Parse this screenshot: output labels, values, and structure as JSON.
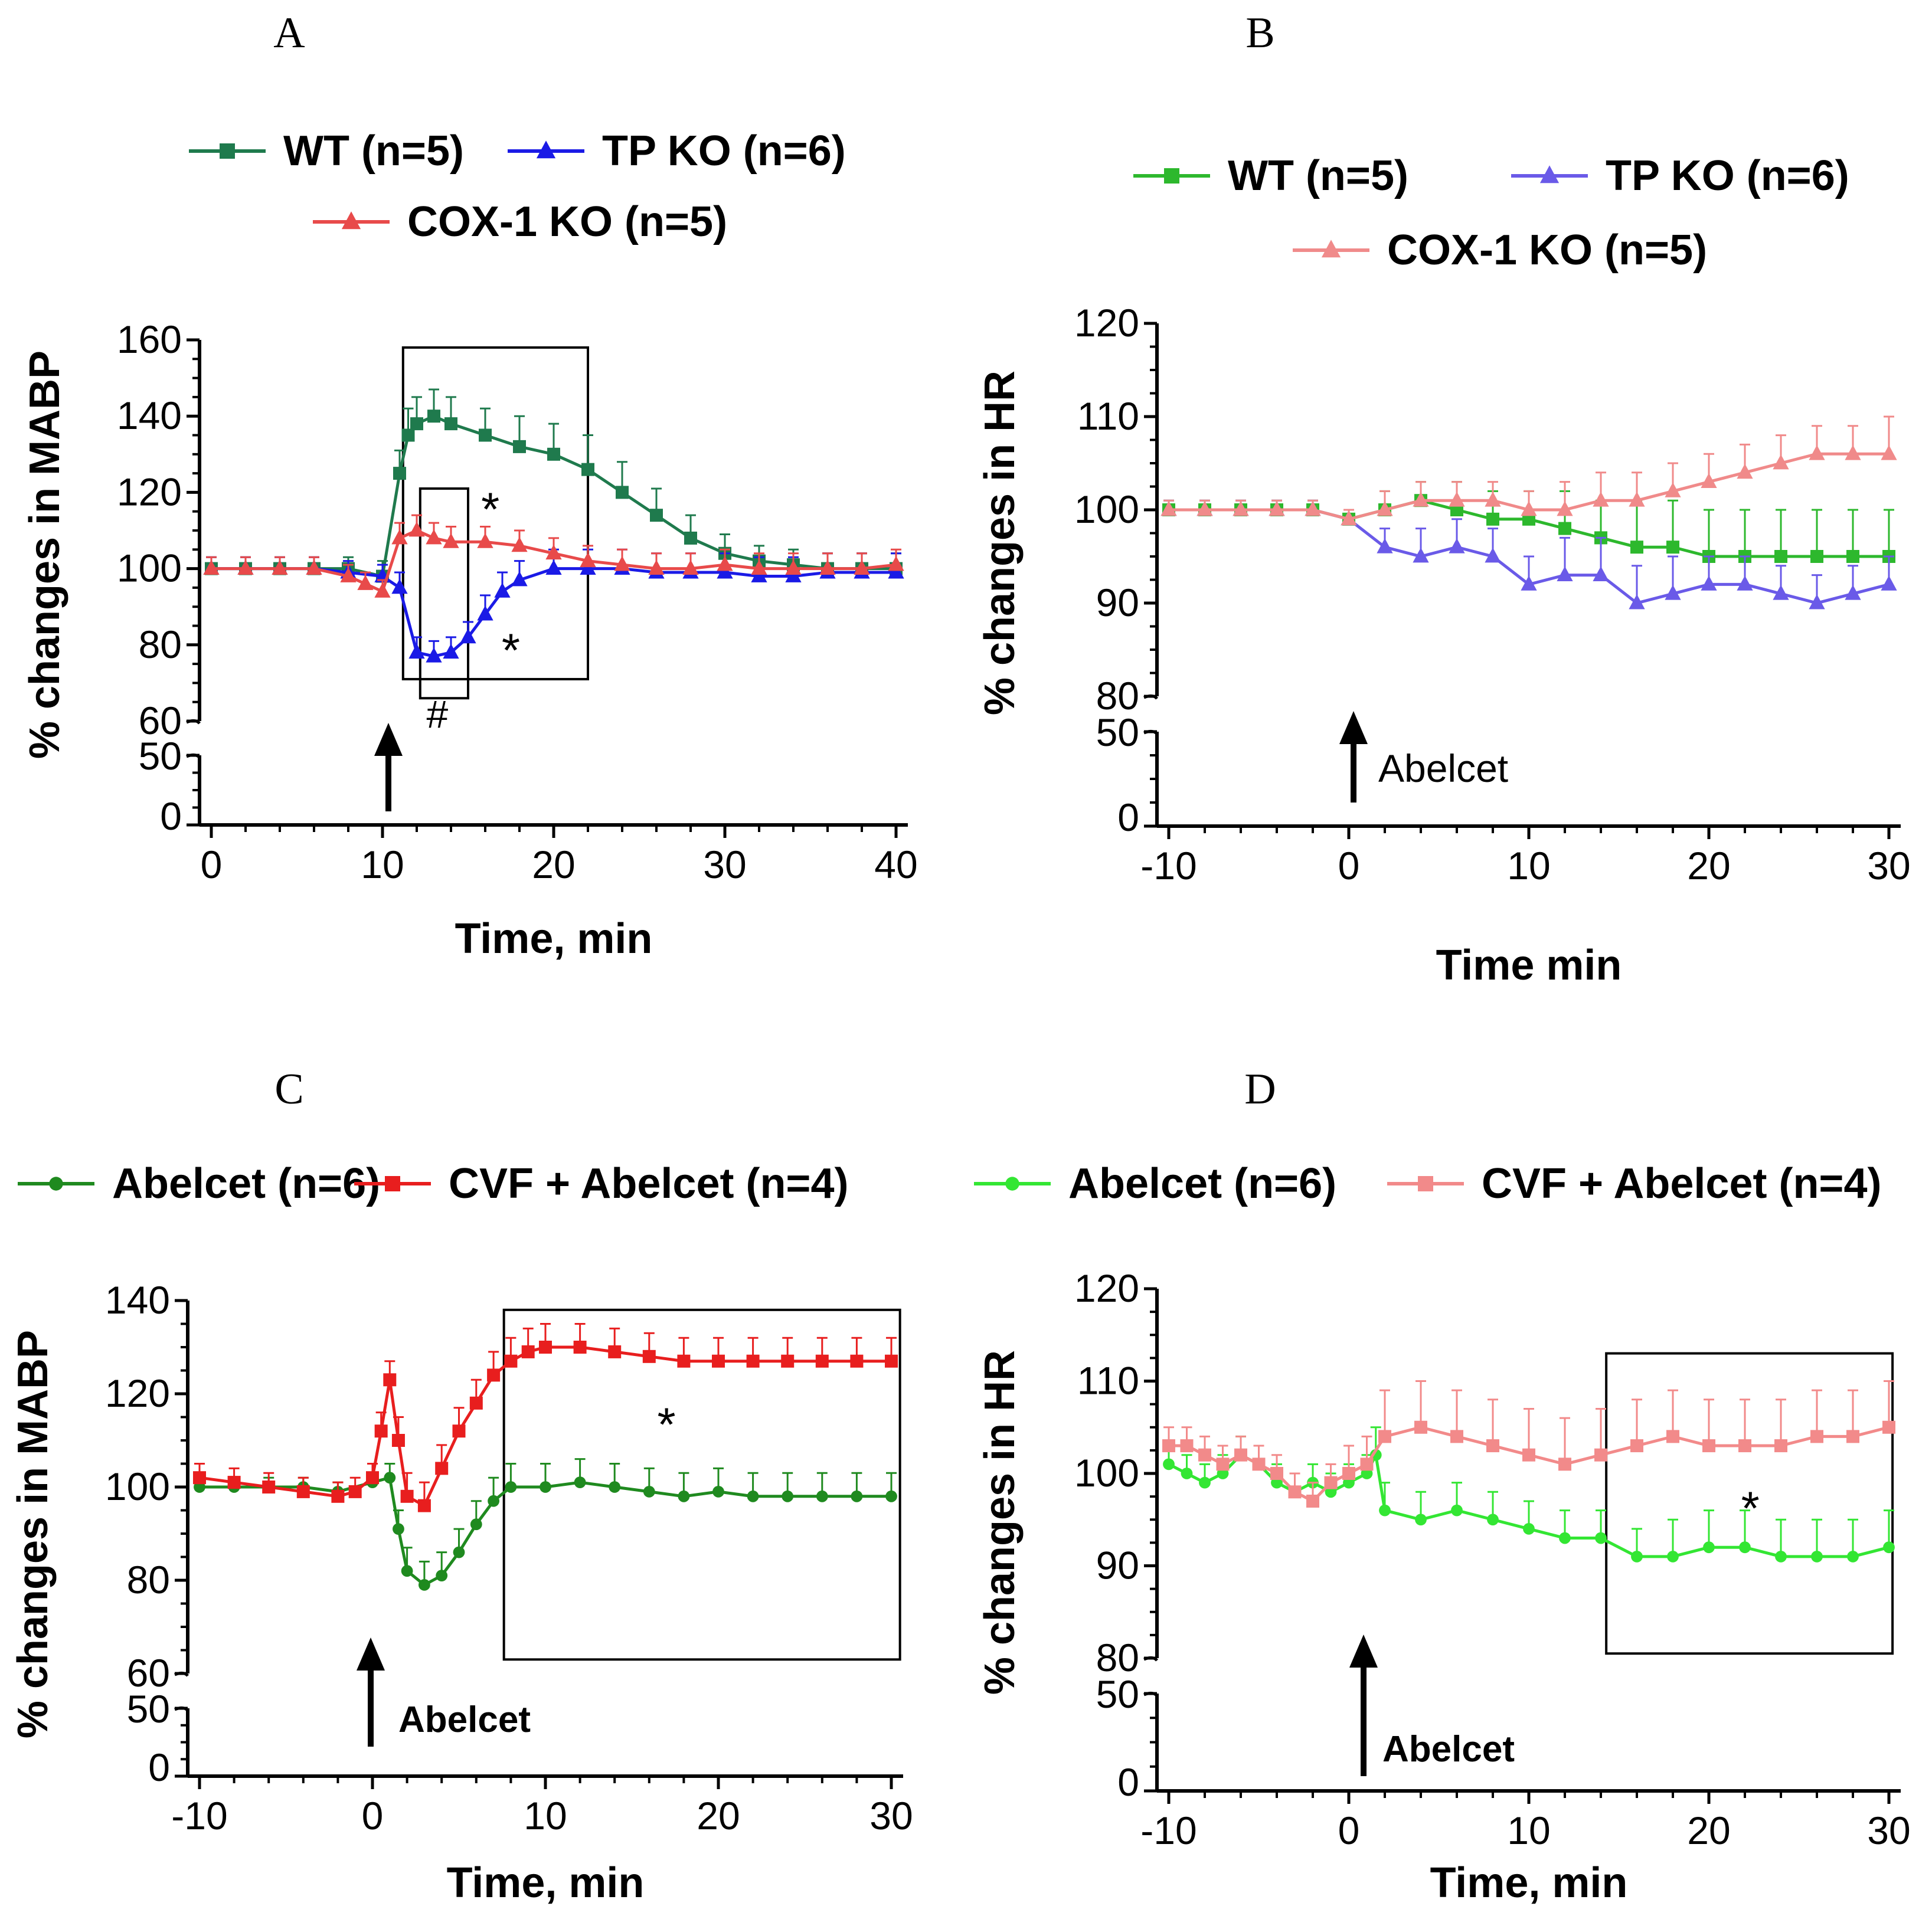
{
  "figure": {
    "panel_letters": [
      "A",
      "B",
      "C",
      "D"
    ]
  },
  "chart_data": [
    {
      "panel": "A",
      "type": "line",
      "xlabel": "Time, min",
      "ylabel": "% changes in MABP",
      "xlim": [
        0,
        40
      ],
      "ylim": [
        60,
        160
      ],
      "ylim_lower": [
        0,
        50
      ],
      "xticks": [
        "0",
        "10",
        "20",
        "30",
        "40"
      ],
      "yticks": [
        "60",
        "80",
        "100",
        "120",
        "140",
        "160"
      ],
      "yticks_lower": [
        "0",
        "50"
      ],
      "legend": [
        "WT (n=5)",
        "TP KO (n=6)",
        "COX-1 KO (n=5)"
      ],
      "annotations": [
        "*",
        "*",
        "#"
      ],
      "injection_time": 10,
      "series": [
        {
          "name": "WT (n=5)",
          "color": "#1f7a4d",
          "marker": "square",
          "x": [
            0,
            2,
            4,
            6,
            8,
            10,
            11,
            11.5,
            12,
            13,
            14,
            16,
            18,
            20,
            22,
            24,
            26,
            28,
            30,
            32,
            34,
            36,
            38,
            40
          ],
          "y": [
            100,
            100,
            100,
            100,
            100,
            98,
            125,
            135,
            138,
            140,
            138,
            135,
            132,
            130,
            126,
            120,
            114,
            108,
            104,
            102,
            101,
            100,
            100,
            100
          ],
          "err": [
            3,
            3,
            3,
            3,
            3,
            4,
            6,
            7,
            7,
            7,
            7,
            7,
            8,
            8,
            9,
            8,
            7,
            6,
            5,
            4,
            4,
            4,
            4,
            4
          ]
        },
        {
          "name": "TP KO (n=6)",
          "color": "#1a1ae6",
          "marker": "triangle",
          "x": [
            0,
            2,
            4,
            6,
            8,
            10,
            11,
            12,
            13,
            14,
            15,
            16,
            17,
            18,
            20,
            22,
            24,
            26,
            28,
            30,
            32,
            34,
            36,
            38,
            40
          ],
          "y": [
            100,
            100,
            100,
            100,
            99,
            98,
            95,
            78,
            77,
            78,
            82,
            88,
            94,
            97,
            100,
            100,
            100,
            99,
            99,
            99,
            98,
            98,
            99,
            99,
            99
          ],
          "err": [
            3,
            3,
            3,
            3,
            3,
            3,
            4,
            4,
            4,
            4,
            4,
            5,
            5,
            5,
            5,
            5,
            5,
            5,
            5,
            5,
            5,
            5,
            5,
            5,
            5
          ]
        },
        {
          "name": "COX-1 KO (n=5)",
          "color": "#e84a4a",
          "marker": "triangle",
          "x": [
            0,
            2,
            4,
            6,
            8,
            9,
            10,
            11,
            12,
            13,
            14,
            16,
            18,
            20,
            22,
            24,
            26,
            28,
            30,
            32,
            34,
            36,
            38,
            40
          ],
          "y": [
            100,
            100,
            100,
            100,
            98,
            96,
            94,
            108,
            110,
            108,
            107,
            107,
            106,
            104,
            102,
            101,
            100,
            100,
            101,
            100,
            100,
            100,
            100,
            101
          ],
          "err": [
            3,
            3,
            3,
            3,
            3,
            3,
            3,
            4,
            4,
            4,
            4,
            4,
            4,
            4,
            4,
            4,
            4,
            4,
            4,
            4,
            4,
            4,
            4,
            4
          ]
        }
      ]
    },
    {
      "panel": "B",
      "type": "line",
      "xlabel": "Time min",
      "ylabel": "% changes in HR",
      "xlim": [
        -10,
        30
      ],
      "ylim": [
        80,
        120
      ],
      "ylim_lower": [
        0,
        50
      ],
      "xticks": [
        "-10",
        "0",
        "10",
        "20",
        "30"
      ],
      "yticks": [
        "80",
        "90",
        "100",
        "110",
        "120"
      ],
      "yticks_lower": [
        "0",
        "50"
      ],
      "legend": [
        "WT (n=5)",
        "TP KO (n=6)",
        "COX-1 KO (n=5)"
      ],
      "arrow_label": "Abelcet",
      "injection_time": 0,
      "series": [
        {
          "name": "WT (n=5)",
          "color": "#2db82d",
          "marker": "square",
          "x": [
            -10,
            -8,
            -6,
            -4,
            -2,
            0,
            2,
            4,
            6,
            8,
            10,
            12,
            14,
            16,
            18,
            20,
            22,
            24,
            26,
            28,
            30
          ],
          "y": [
            100,
            100,
            100,
            100,
            100,
            99,
            100,
            101,
            100,
            99,
            99,
            98,
            97,
            96,
            96,
            95,
            95,
            95,
            95,
            95,
            95
          ],
          "err": [
            1,
            1,
            1,
            1,
            1,
            1,
            2,
            2,
            3,
            3,
            3,
            4,
            4,
            5,
            5,
            5,
            5,
            5,
            5,
            5,
            5
          ]
        },
        {
          "name": "TP KO (n=6)",
          "color": "#6a5ae8",
          "marker": "triangle",
          "x": [
            -10,
            -8,
            -6,
            -4,
            -2,
            0,
            2,
            4,
            6,
            8,
            10,
            12,
            14,
            16,
            18,
            20,
            22,
            24,
            26,
            28,
            30
          ],
          "y": [
            100,
            100,
            100,
            100,
            100,
            99,
            96,
            95,
            96,
            95,
            92,
            93,
            93,
            90,
            91,
            92,
            92,
            91,
            90,
            91,
            92
          ],
          "err": [
            1,
            1,
            1,
            1,
            1,
            1,
            2,
            3,
            3,
            3,
            3,
            4,
            4,
            4,
            4,
            3,
            3,
            3,
            3,
            3,
            3
          ]
        },
        {
          "name": "COX-1 KO (n=5)",
          "color": "#f08a8a",
          "marker": "triangle",
          "x": [
            -10,
            -8,
            -6,
            -4,
            -2,
            0,
            2,
            4,
            6,
            8,
            10,
            12,
            14,
            16,
            18,
            20,
            22,
            24,
            26,
            28,
            30
          ],
          "y": [
            100,
            100,
            100,
            100,
            100,
            99,
            100,
            101,
            101,
            101,
            100,
            100,
            101,
            101,
            102,
            103,
            104,
            105,
            106,
            106,
            106
          ],
          "err": [
            1,
            1,
            1,
            1,
            1,
            1,
            2,
            2,
            2,
            2,
            2,
            3,
            3,
            3,
            3,
            3,
            3,
            3,
            3,
            3,
            4
          ]
        }
      ]
    },
    {
      "panel": "C",
      "type": "line",
      "xlabel": "Time, min",
      "ylabel": "% changes in MABP",
      "xlim": [
        -10,
        30
      ],
      "ylim": [
        60,
        140
      ],
      "ylim_lower": [
        0,
        50
      ],
      "xticks": [
        "-10",
        "0",
        "10",
        "20",
        "30"
      ],
      "yticks": [
        "60",
        "80",
        "100",
        "120",
        "140"
      ],
      "yticks_lower": [
        "0",
        "50"
      ],
      "legend": [
        "Abelcet (n=6)",
        "CVF + Abelcet (n=4)"
      ],
      "annotations": [
        "*"
      ],
      "arrow_label": "Abelcet",
      "injection_time": 0,
      "series": [
        {
          "name": "Abelcet (n=6)",
          "color": "#1f8a1f",
          "marker": "circle",
          "x": [
            -10,
            -8,
            -6,
            -4,
            -2,
            0,
            1,
            1.5,
            2,
            3,
            4,
            5,
            6,
            7,
            8,
            10,
            12,
            14,
            16,
            18,
            20,
            22,
            24,
            26,
            28,
            30
          ],
          "y": [
            100,
            100,
            100,
            100,
            99,
            101,
            102,
            91,
            82,
            79,
            81,
            86,
            92,
            97,
            100,
            100,
            101,
            100,
            99,
            98,
            99,
            98,
            98,
            98,
            98,
            98
          ],
          "err": [
            2,
            2,
            2,
            2,
            2,
            2,
            3,
            4,
            5,
            5,
            5,
            5,
            5,
            5,
            5,
            5,
            5,
            5,
            5,
            5,
            5,
            5,
            5,
            5,
            5,
            5
          ]
        },
        {
          "name": "CVF + Abelcet (n=4)",
          "color": "#e81e1e",
          "marker": "square",
          "x": [
            -10,
            -8,
            -6,
            -4,
            -2,
            -1,
            0,
            0.5,
            1,
            1.5,
            2,
            3,
            4,
            5,
            6,
            7,
            8,
            9,
            10,
            12,
            14,
            16,
            18,
            20,
            22,
            24,
            26,
            28,
            30
          ],
          "y": [
            102,
            101,
            100,
            99,
            98,
            99,
            102,
            112,
            123,
            110,
            98,
            96,
            104,
            112,
            118,
            124,
            127,
            129,
            130,
            130,
            129,
            128,
            127,
            127,
            127,
            127,
            127,
            127,
            127
          ],
          "err": [
            3,
            3,
            3,
            3,
            3,
            3,
            3,
            4,
            4,
            5,
            5,
            5,
            5,
            5,
            5,
            5,
            5,
            5,
            5,
            5,
            5,
            5,
            5,
            5,
            5,
            5,
            5,
            5,
            5
          ]
        }
      ]
    },
    {
      "panel": "D",
      "type": "line",
      "xlabel": "Time, min",
      "ylabel": "% changes in HR",
      "xlim": [
        -10,
        30
      ],
      "ylim": [
        80,
        120
      ],
      "ylim_lower": [
        0,
        50
      ],
      "xticks": [
        "-10",
        "0",
        "10",
        "20",
        "30"
      ],
      "yticks": [
        "80",
        "90",
        "100",
        "110",
        "120"
      ],
      "yticks_lower": [
        "0",
        "50"
      ],
      "legend": [
        "Abelcet (n=6)",
        "CVF + Abelcet (n=4)"
      ],
      "annotations": [
        "*"
      ],
      "arrow_label": "Abelcet",
      "injection_time": 0,
      "series": [
        {
          "name": "Abelcet (n=6)",
          "color": "#33e633",
          "marker": "circle",
          "x": [
            -10,
            -9,
            -8,
            -7,
            -6,
            -5,
            -4,
            -3,
            -2,
            -1,
            0,
            1,
            1.5,
            2,
            4,
            6,
            8,
            10,
            12,
            14,
            16,
            18,
            20,
            22,
            24,
            26,
            28,
            30
          ],
          "y": [
            101,
            100,
            99,
            100,
            102,
            101,
            99,
            98,
            99,
            98,
            99,
            100,
            102,
            96,
            95,
            96,
            95,
            94,
            93,
            93,
            91,
            91,
            92,
            92,
            91,
            91,
            91,
            92
          ],
          "err": [
            2,
            2,
            2,
            2,
            2,
            2,
            2,
            2,
            2,
            2,
            2,
            2,
            3,
            3,
            3,
            3,
            3,
            3,
            3,
            3,
            3,
            4,
            4,
            4,
            4,
            4,
            4,
            4
          ]
        },
        {
          "name": "CVF + Abelcet (n=4)",
          "color": "#f28a8a",
          "marker": "square",
          "x": [
            -10,
            -9,
            -8,
            -7,
            -6,
            -5,
            -4,
            -3,
            -2,
            -1,
            0,
            1,
            2,
            4,
            6,
            8,
            10,
            12,
            14,
            16,
            18,
            20,
            22,
            24,
            26,
            28,
            30
          ],
          "y": [
            103,
            103,
            102,
            101,
            102,
            101,
            100,
            98,
            97,
            99,
            100,
            101,
            104,
            105,
            104,
            103,
            102,
            101,
            102,
            103,
            104,
            103,
            103,
            103,
            104,
            104,
            105
          ],
          "err": [
            2,
            2,
            2,
            2,
            2,
            2,
            2,
            2,
            2,
            2,
            3,
            3,
            5,
            5,
            5,
            5,
            5,
            5,
            5,
            5,
            5,
            5,
            5,
            5,
            5,
            5,
            5
          ]
        }
      ]
    }
  ]
}
